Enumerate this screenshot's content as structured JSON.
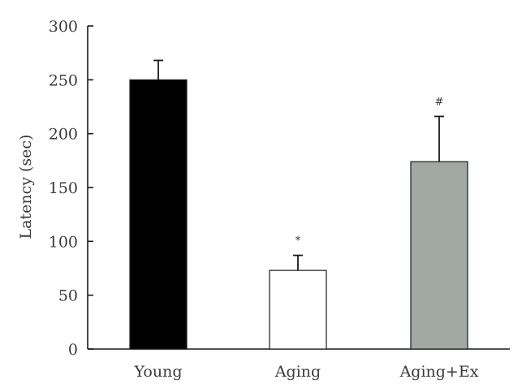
{
  "chart_data": {
    "type": "bar",
    "title": "",
    "xlabel": "",
    "ylabel": "Latency (sec)",
    "ylim": [
      0,
      300
    ],
    "yticks": [
      0,
      50,
      100,
      150,
      200,
      250,
      300
    ],
    "categories": [
      "Young",
      "Aging",
      "Aging+Ex"
    ],
    "values": [
      250,
      73,
      174
    ],
    "errors": [
      18,
      14,
      42
    ],
    "annotations": [
      "",
      "*",
      "#"
    ],
    "colors": [
      "#000000",
      "#ffffff",
      "#a2a9a4"
    ],
    "grid": false,
    "legend": "none"
  }
}
